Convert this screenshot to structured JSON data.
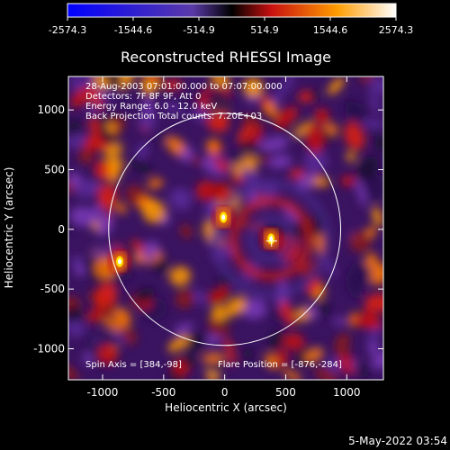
{
  "colorbar": {
    "ticks": [
      "-2574.3",
      "-1544.6",
      "-514.9",
      "514.9",
      "1544.6",
      "2574.3"
    ],
    "min": -2574.3,
    "max": 2574.3
  },
  "image": {
    "title": "Reconstructed RHESSI Image",
    "info_lines": [
      "28-Aug-2003 07:01:00.000 to 07:07:00.000",
      "Detectors: 7F 8F 9F, Att 0",
      "Energy Range: 6.0 - 12.0 keV",
      "Back Projection    Total counts: 7.20E+03"
    ],
    "spin_axis": "Spin Axis = [384,-98]",
    "flare_position": "Flare Position = [-876,-284]"
  },
  "footer": {
    "date": "5-May-2022 03:54"
  },
  "chart_data": {
    "type": "heatmap",
    "title": "Reconstructed RHESSI Image",
    "xlabel": "Heliocentric X (arcsec)",
    "ylabel": "Heliocentric Y (arcsec)",
    "xlim": [
      -1280,
      1300
    ],
    "ylim": [
      -1260,
      1280
    ],
    "xticks": [
      -1000,
      -500,
      0,
      500,
      1000
    ],
    "yticks": [
      -1000,
      -500,
      0,
      500,
      1000
    ],
    "colorbar_range": [
      -2574.3,
      2574.3
    ],
    "solar_limb_radius": 950,
    "spin_axis": [
      384,
      -98
    ],
    "flare_position": [
      -876,
      -284
    ],
    "bright_sources": [
      {
        "x": 380,
        "y": -80,
        "value": 2574.3
      },
      {
        "x": -10,
        "y": 100,
        "value": 2200
      },
      {
        "x": -860,
        "y": -270,
        "value": 2300
      }
    ]
  }
}
